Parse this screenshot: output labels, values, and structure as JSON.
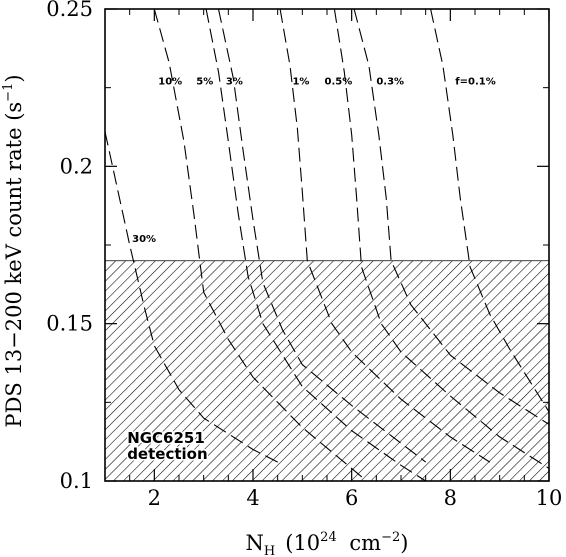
{
  "chart_data": {
    "type": "line",
    "xlabel_base": "N",
    "xlabel_sub": "H",
    "xlabel_unit_pre": "(10",
    "xlabel_unit_exp": "24",
    "xlabel_unit_mid": " cm",
    "xlabel_unit_exp2": "−2",
    "xlabel_unit_post": ")",
    "ylabel_main": "PDS 13−200 keV count rate (s",
    "ylabel_exp": "−1",
    "ylabel_post": ")",
    "xlim": [
      1,
      10
    ],
    "ylim": [
      0.1,
      0.25
    ],
    "x_ticks": [
      2,
      4,
      6,
      8,
      10
    ],
    "x_tick_labels": [
      "2",
      "4",
      "6",
      "8",
      "10"
    ],
    "y_ticks": [
      0.1,
      0.15,
      0.2,
      0.25
    ],
    "y_tick_labels": [
      "0.1",
      "0.15",
      "0.2",
      "0.25"
    ],
    "grid": false,
    "line_style": "dashed",
    "series": [
      {
        "name": "30%",
        "label_pos": [
          1.55,
          0.176
        ],
        "points": [
          [
            1.0,
            0.211
          ],
          [
            1.5,
            0.175
          ],
          [
            1.8,
            0.155
          ],
          [
            2.0,
            0.143
          ],
          [
            2.5,
            0.129
          ],
          [
            3.0,
            0.12
          ],
          [
            4.0,
            0.11
          ],
          [
            4.5,
            0.106
          ]
        ]
      },
      {
        "name": "10%",
        "label_pos": [
          2.08,
          0.226
        ],
        "points": [
          [
            2.0,
            0.25
          ],
          [
            2.3,
            0.233
          ],
          [
            2.6,
            0.208
          ],
          [
            2.8,
            0.185
          ],
          [
            3.0,
            0.16
          ],
          [
            3.5,
            0.145
          ],
          [
            4.0,
            0.133
          ],
          [
            5.0,
            0.117
          ],
          [
            6.0,
            0.104
          ],
          [
            6.3,
            0.1
          ]
        ]
      },
      {
        "name": "5%",
        "label_pos": [
          2.85,
          0.226
        ],
        "points": [
          [
            3.05,
            0.25
          ],
          [
            3.3,
            0.23
          ],
          [
            3.5,
            0.208
          ],
          [
            3.7,
            0.185
          ],
          [
            3.9,
            0.165
          ],
          [
            4.2,
            0.15
          ],
          [
            5.0,
            0.13
          ],
          [
            6.0,
            0.116
          ],
          [
            7.0,
            0.105
          ],
          [
            7.5,
            0.1
          ]
        ]
      },
      {
        "name": "3%",
        "label_pos": [
          3.45,
          0.226
        ],
        "points": [
          [
            3.3,
            0.25
          ],
          [
            3.6,
            0.228
          ],
          [
            3.8,
            0.205
          ],
          [
            4.0,
            0.183
          ],
          [
            4.2,
            0.163
          ],
          [
            4.6,
            0.148
          ],
          [
            5.0,
            0.137
          ],
          [
            6.0,
            0.124
          ],
          [
            7.0,
            0.112
          ],
          [
            7.5,
            0.106
          ]
        ]
      },
      {
        "name": "1%",
        "label_pos": [
          4.8,
          0.226
        ],
        "points": [
          [
            4.55,
            0.25
          ],
          [
            4.75,
            0.232
          ],
          [
            4.9,
            0.212
          ],
          [
            5.0,
            0.192
          ],
          [
            5.1,
            0.17
          ],
          [
            5.6,
            0.15
          ],
          [
            6.0,
            0.141
          ],
          [
            7.0,
            0.126
          ],
          [
            8.0,
            0.114
          ],
          [
            8.8,
            0.106
          ]
        ]
      },
      {
        "name": "0.5%",
        "label_pos": [
          5.45,
          0.226
        ],
        "points": [
          [
            5.65,
            0.25
          ],
          [
            5.85,
            0.23
          ],
          [
            6.0,
            0.21
          ],
          [
            6.1,
            0.19
          ],
          [
            6.2,
            0.168
          ],
          [
            6.6,
            0.15
          ],
          [
            7.0,
            0.141
          ],
          [
            8.0,
            0.127
          ],
          [
            9.0,
            0.114
          ],
          [
            10.0,
            0.104
          ]
        ]
      },
      {
        "name": "0.3%",
        "label_pos": [
          6.5,
          0.226
        ],
        "points": [
          [
            6.05,
            0.25
          ],
          [
            6.35,
            0.232
          ],
          [
            6.55,
            0.21
          ],
          [
            6.7,
            0.19
          ],
          [
            6.8,
            0.17
          ],
          [
            7.2,
            0.156
          ],
          [
            8.0,
            0.14
          ],
          [
            9.0,
            0.128
          ],
          [
            10.0,
            0.118
          ]
        ]
      },
      {
        "name": "f=0.1%",
        "label_pos": [
          8.1,
          0.226
        ],
        "points": [
          [
            7.6,
            0.25
          ],
          [
            7.85,
            0.232
          ],
          [
            8.05,
            0.21
          ],
          [
            8.2,
            0.19
          ],
          [
            8.4,
            0.168
          ],
          [
            8.8,
            0.153
          ],
          [
            9.2,
            0.142
          ],
          [
            10.0,
            0.122
          ]
        ]
      }
    ],
    "shaded_region": {
      "x": [
        1,
        10
      ],
      "y": [
        0.1,
        0.17
      ],
      "pattern": "hatched"
    },
    "annotation": {
      "lines": [
        "NGC6251",
        "detection"
      ],
      "pos": [
        1.45,
        0.112
      ]
    }
  }
}
